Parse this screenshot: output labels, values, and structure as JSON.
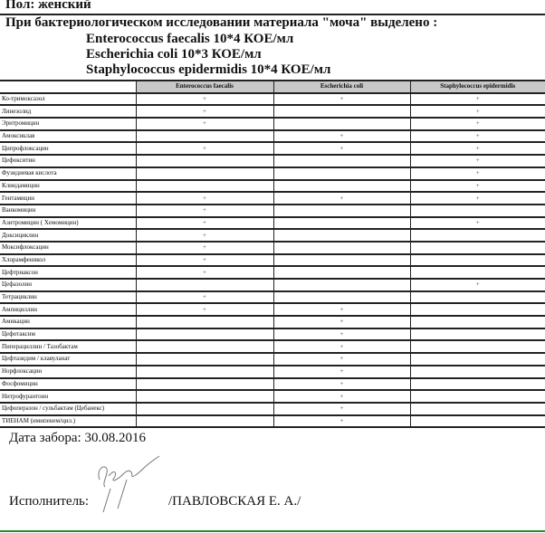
{
  "header": {
    "sex_line": "Пол: женский",
    "study_line": "При бактериологическом исследовании материала \"моча\" выделено :",
    "organisms": [
      "Enterococcus faecalis 10*4 КОЕ/мл",
      "Escherichia coli 10*3 КОЕ/мл",
      "Staphylococcus epidermidis 10*4 КОЕ/мл"
    ]
  },
  "table": {
    "columns": [
      "",
      "Enterococcus faecalis",
      "Escherichia coli",
      "Staphylococcus epidermidis"
    ],
    "rows": [
      {
        "name": "Ко-тримоксазол",
        "v": [
          "+",
          "+",
          "+"
        ]
      },
      {
        "name": "Линезолид",
        "v": [
          "+",
          "",
          "+"
        ]
      },
      {
        "name": "Эритромицин",
        "v": [
          "+",
          "",
          "+"
        ]
      },
      {
        "name": "Амоксиклав",
        "v": [
          "",
          "+",
          "+"
        ]
      },
      {
        "name": "Ципрофлоксацин",
        "v": [
          "+",
          "+",
          "+"
        ]
      },
      {
        "name": "Цефокситин",
        "v": [
          "",
          "",
          "+"
        ]
      },
      {
        "name": "Фузидиевая кислота",
        "v": [
          "",
          "",
          "+"
        ]
      },
      {
        "name": "Клиндамицин",
        "v": [
          "",
          "",
          "+"
        ]
      },
      {
        "name": "Гентамицин",
        "v": [
          "+",
          "+",
          "+"
        ]
      },
      {
        "name": "Ванкомицин",
        "v": [
          "+",
          "",
          ""
        ]
      },
      {
        "name": "Азитромицин ( Хемомицин)",
        "v": [
          "+",
          "",
          "+"
        ]
      },
      {
        "name": "Доксициклин",
        "v": [
          "+",
          "",
          ""
        ]
      },
      {
        "name": "Моксифлоксацин",
        "v": [
          "+",
          "",
          ""
        ]
      },
      {
        "name": "Хлорамфеникол",
        "v": [
          "+",
          "",
          ""
        ]
      },
      {
        "name": "Цефтриаксон",
        "v": [
          "+",
          "",
          ""
        ]
      },
      {
        "name": "Цефазолин",
        "v": [
          "",
          "",
          "+"
        ]
      },
      {
        "name": "Тетрациклин",
        "v": [
          "+",
          "",
          ""
        ]
      },
      {
        "name": "Ампициллин",
        "v": [
          "+",
          "+",
          ""
        ]
      },
      {
        "name": "Амикацин",
        "v": [
          "",
          "+",
          ""
        ]
      },
      {
        "name": "Цефотаксим",
        "v": [
          "",
          "+",
          ""
        ]
      },
      {
        "name": "Пиперациллин / Тазобактам",
        "v": [
          "",
          "+",
          ""
        ]
      },
      {
        "name": "Цефтазидим / клавуланат",
        "v": [
          "",
          "+",
          ""
        ]
      },
      {
        "name": "Норфлоксацин",
        "v": [
          "",
          "+",
          ""
        ]
      },
      {
        "name": "Фосфомицин",
        "v": [
          "",
          "+",
          ""
        ]
      },
      {
        "name": "Нитрофурантоин",
        "v": [
          "",
          "+",
          ""
        ]
      },
      {
        "name": "Цефоперазон / сульбактам (Цебанекс)",
        "v": [
          "",
          "+",
          ""
        ]
      },
      {
        "name": "ТИЕНАМ (имипенем/цил.)",
        "v": [
          "",
          "+",
          ""
        ]
      }
    ]
  },
  "footer": {
    "date_line": "Дата забора: 30.08.2016",
    "executor_label": "Исполнитель:",
    "executor_name": "/ПАВЛОВСКАЯ Е. А./"
  },
  "colors": {
    "header_bg": "#c8c8c8",
    "bottom_line": "#2a8a2a"
  }
}
